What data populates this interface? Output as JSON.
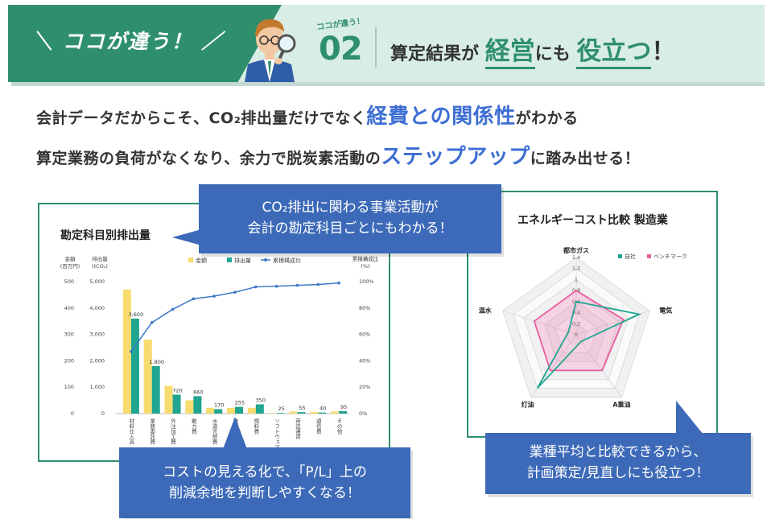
{
  "banner": {
    "tag": "＼ ココが違う！ ／",
    "badge_small": "ココが違う！",
    "badge_number": "02",
    "headline_pre": "算定結果が",
    "headline_hl1": "経営",
    "headline_mid": "にも",
    "headline_hl2": "役立つ",
    "headline_excl": "！",
    "colors": {
      "green": "#2f8f6d",
      "mint": "#d8ede5",
      "blue": "#3d6ed3"
    }
  },
  "intro": {
    "line1_pre": "会計データだからこそ、CO₂排出量だけでなく",
    "line1_hl": "経費との関係性",
    "line1_post": "がわかる",
    "line2_pre": "算定業務の負荷がなくなり、余力で脱炭素活動の",
    "line2_hl": "ステップアップ",
    "line2_post": "に踏み出せる！"
  },
  "callouts": {
    "top_line1": "CO₂排出に関わる事業活動が",
    "top_line2": "会計の勘定科目ごとにもわかる！",
    "bottom_line1": "コストの見える化で、「P/L」上の",
    "bottom_line2": "削減余地を判断しやすくなる！",
    "right_line1": "業種平均と比較できるから、",
    "right_line2": "計画策定/見直しにも役立つ！"
  },
  "chart_data": [
    {
      "type": "bar",
      "title": "勘定科目別排出量",
      "left_axis_label": "金額",
      "left_axis_unit": "(百万円)",
      "mid_axis_label": "排出量",
      "mid_axis_unit": "(tCO₂)",
      "right_axis_label": "累積構成比",
      "right_axis_unit": "(%)",
      "categories": [
        "材料仕入高",
        "業務委託費",
        "外注加工費",
        "動力費",
        "水道光熱費",
        "機械装置",
        "燃料費",
        "ソフトウェア",
        "荷造運賃",
        "通信費",
        "その他"
      ],
      "series": [
        {
          "name": "金額",
          "color": "#f7dc6f",
          "values": [
            470,
            280,
            105,
            50,
            22,
            22,
            22,
            2,
            8,
            6,
            8
          ]
        },
        {
          "name": "排出量",
          "color": "#1fa590",
          "values": [
            3600,
            1800,
            720,
            660,
            170,
            255,
            350,
            25,
            55,
            40,
            95
          ]
        },
        {
          "name": "累積構成比",
          "color": "#3a79c8",
          "values": [
            47,
            69,
            79,
            87,
            89,
            92,
            96,
            96.5,
            97.2,
            97.8,
            99
          ]
        }
      ],
      "data_labels": [
        "3,600",
        "1,800",
        "720",
        "660",
        "170",
        "255",
        "350",
        "25",
        "55",
        "40",
        "95"
      ],
      "left_ticks": [
        "500",
        "400",
        "300",
        "200",
        "100",
        "0"
      ],
      "mid_ticks": [
        "5,000",
        "4,000",
        "3,000",
        "2,000",
        "1,000",
        "0"
      ],
      "right_ticks": [
        "100%",
        "80%",
        "60%",
        "40%",
        "20%",
        "0%"
      ],
      "left_ylim": [
        0,
        500
      ],
      "mid_ylim": [
        0,
        5000
      ],
      "right_ylim": [
        0,
        100
      ]
    },
    {
      "type": "radar",
      "title": "エネルギーコスト比較 製造業",
      "axes": [
        "都市ガス",
        "電気",
        "A重油",
        "灯油",
        "温水"
      ],
      "rlim": [
        0,
        1.4
      ],
      "ticks": [
        "1.4",
        "1.2",
        "1",
        "0.8",
        "0.6",
        "0.4",
        "0.2",
        "0"
      ],
      "series": [
        {
          "name": "自社",
          "color": "#1fa590",
          "values": [
            0.6,
            1.2,
            0.15,
            1.2,
            0.15
          ]
        },
        {
          "name": "ベンチマーク",
          "color": "#e75ea0",
          "values": [
            0.8,
            0.9,
            0.8,
            0.8,
            0.8
          ]
        }
      ]
    }
  ]
}
